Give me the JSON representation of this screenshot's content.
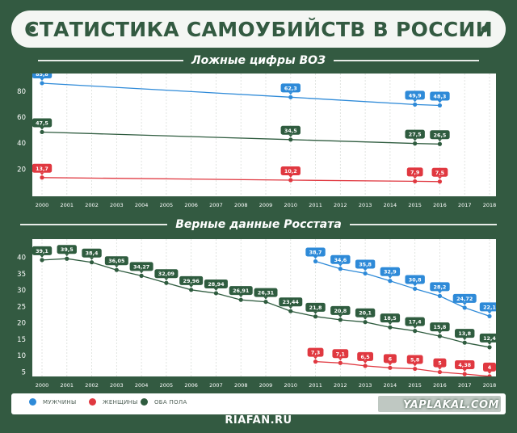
{
  "title": "СТАТИСТИКА САМОУБИЙСТВ В РОССИИ",
  "source": "RIAFAN.RU",
  "watermark": "YAPLAKAL.COM",
  "colors": {
    "background": "#335a41",
    "men": "#2e8ad8",
    "women": "#e03840",
    "both": "#2f5c3f"
  },
  "legend": [
    {
      "key": "men",
      "label": "МУЖЧИНЫ",
      "color": "#2e8ad8"
    },
    {
      "key": "women",
      "label": "ЖЕНЩИНЫ",
      "color": "#e03840"
    },
    {
      "key": "both",
      "label": "ОБА ПОЛА",
      "color": "#2f5c3f"
    }
  ],
  "chart_data": [
    {
      "type": "line",
      "title": "Ложные цифры ВОЗ",
      "x": [
        2000,
        2001,
        2002,
        2003,
        2004,
        2005,
        2006,
        2007,
        2008,
        2009,
        2010,
        2011,
        2012,
        2013,
        2014,
        2015,
        2016,
        2017,
        2018
      ],
      "xlim": [
        2000,
        2018
      ],
      "ylim": [
        0,
        92
      ],
      "yticks": [
        20,
        40,
        60,
        80
      ],
      "grid": "vertical",
      "series": [
        {
          "key": "men",
          "color": "#2e8ad8",
          "points": [
            [
              2000,
              85.8
            ],
            [
              2010,
              62.3
            ],
            [
              2015,
              49.9
            ],
            [
              2016,
              48.3
            ]
          ],
          "labels": [
            "85,8",
            "62,3",
            "49,9",
            "48,3"
          ],
          "display": [
            [
              2000,
              85.8
            ],
            [
              2010,
              75.0
            ],
            [
              2015,
              69.4
            ],
            [
              2016,
              68.7
            ]
          ]
        },
        {
          "key": "both",
          "color": "#2f5c3f",
          "points": [
            [
              2000,
              47.5
            ],
            [
              2010,
              34.5
            ],
            [
              2015,
              27.5
            ],
            [
              2016,
              26.5
            ]
          ],
          "labels": [
            "47,5",
            "34,5",
            "27,5",
            "26,5"
          ],
          "display": [
            [
              2000,
              48.2
            ],
            [
              2010,
              42.4
            ],
            [
              2015,
              39.4
            ],
            [
              2016,
              39.0
            ]
          ]
        },
        {
          "key": "women",
          "color": "#e03840",
          "points": [
            [
              2000,
              13.7
            ],
            [
              2010,
              10.2
            ],
            [
              2015,
              7.9
            ],
            [
              2016,
              7.5
            ]
          ],
          "labels": [
            "13,7",
            "10,2",
            "7,9",
            "7,5"
          ],
          "display": [
            [
              2000,
              13.2
            ],
            [
              2010,
              11.2
            ],
            [
              2015,
              10.3
            ],
            [
              2016,
              10.1
            ]
          ]
        }
      ]
    },
    {
      "type": "line",
      "title": "Верные данные Росстата",
      "x": [
        2000,
        2001,
        2002,
        2003,
        2004,
        2005,
        2006,
        2007,
        2008,
        2009,
        2010,
        2011,
        2012,
        2013,
        2014,
        2015,
        2016,
        2017,
        2018
      ],
      "xlim": [
        2000,
        2018
      ],
      "ylim": [
        0,
        45
      ],
      "yticks": [
        5,
        10,
        15,
        20,
        25,
        30,
        35,
        40
      ],
      "grid": "vertical",
      "series": [
        {
          "key": "both",
          "color": "#2f5c3f",
          "points": [
            [
              2000,
              39.1
            ],
            [
              2001,
              39.5
            ],
            [
              2002,
              38.4
            ],
            [
              2003,
              36.05
            ],
            [
              2004,
              34.27
            ],
            [
              2005,
              32.09
            ],
            [
              2006,
              29.96
            ],
            [
              2007,
              28.94
            ],
            [
              2008,
              26.91
            ],
            [
              2009,
              26.31
            ],
            [
              2010,
              23.44
            ],
            [
              2011,
              21.8
            ],
            [
              2012,
              20.8
            ],
            [
              2013,
              20.1
            ],
            [
              2014,
              18.5
            ],
            [
              2015,
              17.4
            ],
            [
              2016,
              15.8
            ],
            [
              2017,
              13.8
            ],
            [
              2018,
              12.4
            ]
          ],
          "labels": [
            "39,1",
            "39,5",
            "38,4",
            "36,05",
            "34,27",
            "32,09",
            "29,96",
            "28,94",
            "26,91",
            "26,31",
            "23,44",
            "21,8",
            "20,8",
            "20,1",
            "18,5",
            "17,4",
            "15,8",
            "13,8",
            "12,4"
          ]
        },
        {
          "key": "men",
          "color": "#2e8ad8",
          "points": [
            [
              2011,
              38.7
            ],
            [
              2012,
              34.6
            ],
            [
              2013,
              35.8
            ],
            [
              2014,
              32.9
            ],
            [
              2015,
              30.8
            ],
            [
              2016,
              28.2
            ],
            [
              2017,
              24.72
            ],
            [
              2018,
              22.1
            ]
          ],
          "labels": [
            "38,7",
            "34,6",
            "35,8",
            "32,9",
            "30,8",
            "28,2",
            "24,72",
            "22,1"
          ],
          "display": [
            [
              2011,
              38.7
            ],
            [
              2012,
              36.4
            ],
            [
              2013,
              35.0
            ],
            [
              2014,
              32.7
            ],
            [
              2015,
              30.3
            ],
            [
              2016,
              28.1
            ],
            [
              2017,
              24.5
            ],
            [
              2018,
              21.9
            ]
          ]
        },
        {
          "key": "women",
          "color": "#e03840",
          "points": [
            [
              2011,
              7.3
            ],
            [
              2012,
              7.1
            ],
            [
              2013,
              6.5
            ],
            [
              2014,
              6.0
            ],
            [
              2015,
              5.8
            ],
            [
              2016,
              5.0
            ],
            [
              2017,
              4.38
            ],
            [
              2018,
              4.0
            ]
          ],
          "labels": [
            "7,3",
            "7,1",
            "6,5",
            "6",
            "5,8",
            "5",
            "4,38",
            "4"
          ],
          "display": [
            [
              2011,
              8.0
            ],
            [
              2012,
              7.6
            ],
            [
              2013,
              6.7
            ],
            [
              2014,
              6.1
            ],
            [
              2015,
              5.8
            ],
            [
              2016,
              4.8
            ],
            [
              2017,
              4.2
            ],
            [
              2018,
              3.5
            ]
          ]
        }
      ]
    }
  ]
}
